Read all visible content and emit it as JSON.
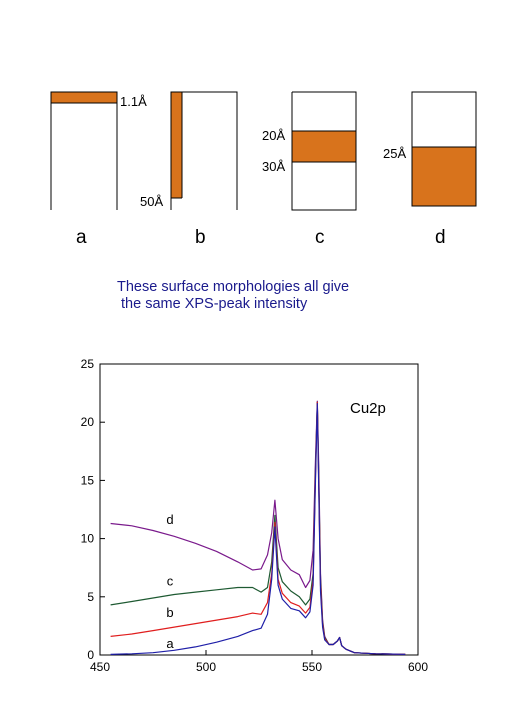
{
  "diagrams": [
    {
      "letter": "a",
      "depth_labels": [
        "1.1Å"
      ]
    },
    {
      "letter": "b",
      "depth_labels": [
        "50Å"
      ]
    },
    {
      "letter": "c",
      "depth_labels": [
        "20Å",
        "30Å"
      ]
    },
    {
      "letter": "d",
      "depth_labels": [
        "25Å"
      ]
    }
  ],
  "caption": {
    "line1": "These surface morphologies all give",
    "line2": " the same XPS-peak intensity"
  },
  "colors": {
    "layer_fill": "#d8731c",
    "caption": "#1a1a8c",
    "a": "#1f1fa8",
    "b": "#e01e1e",
    "c": "#1e5a32",
    "d": "#7a1a8c"
  },
  "chart_data": {
    "type": "line",
    "title": "Cu2p",
    "xlim": [
      450,
      600
    ],
    "ylim": [
      0,
      25
    ],
    "xticks": [
      450,
      500,
      550,
      600
    ],
    "yticks": [
      0,
      5,
      10,
      15,
      20,
      25
    ],
    "series": [
      {
        "name": "d",
        "color": "#7a1a8c",
        "label_at": [
          483,
          11.0
        ],
        "x": [
          455,
          465,
          475,
          485,
          495,
          505,
          515,
          522,
          526,
          529,
          531,
          532.5,
          534,
          536,
          540,
          544,
          547,
          549,
          550.5,
          551.5,
          552.5,
          553.2,
          554,
          555,
          556,
          558,
          560,
          562,
          563,
          564,
          566,
          570,
          580,
          594
        ],
        "y": [
          11.3,
          11.1,
          10.7,
          10.2,
          9.6,
          8.9,
          8.0,
          7.3,
          7.4,
          8.6,
          10.5,
          13.3,
          10.0,
          8.2,
          7.3,
          6.9,
          5.8,
          6.4,
          9.0,
          16.0,
          21.8,
          16.0,
          7.0,
          3.0,
          1.6,
          0.9,
          0.9,
          1.2,
          1.5,
          0.8,
          0.5,
          0.2,
          0.1,
          0.05
        ]
      },
      {
        "name": "c",
        "color": "#1e5a32",
        "label_at": [
          483,
          5.7
        ],
        "x": [
          455,
          465,
          475,
          485,
          495,
          505,
          515,
          522,
          526,
          529,
          531,
          532.5,
          534,
          536,
          540,
          544,
          547,
          549,
          550.5,
          551.5,
          552.5,
          553.2,
          554,
          555,
          556,
          558,
          560,
          562,
          563,
          564,
          566,
          570,
          580,
          594
        ],
        "y": [
          4.3,
          4.6,
          4.9,
          5.2,
          5.4,
          5.6,
          5.8,
          5.8,
          5.4,
          5.8,
          8.0,
          12.0,
          7.5,
          6.3,
          5.5,
          5.0,
          4.3,
          4.8,
          7.0,
          15.0,
          21.7,
          15.0,
          6.5,
          2.8,
          1.5,
          0.9,
          0.9,
          1.2,
          1.5,
          0.8,
          0.5,
          0.2,
          0.1,
          0.05
        ]
      },
      {
        "name": "b",
        "color": "#e01e1e",
        "label_at": [
          483,
          3.0
        ],
        "x": [
          455,
          465,
          475,
          485,
          495,
          505,
          515,
          522,
          526,
          529,
          531,
          532.5,
          534,
          536,
          540,
          544,
          547,
          549,
          550.5,
          551.5,
          552.5,
          553.2,
          554,
          555,
          556,
          558,
          560,
          562,
          563,
          564,
          566,
          570,
          580,
          594
        ],
        "y": [
          1.6,
          1.8,
          2.1,
          2.4,
          2.7,
          3.0,
          3.3,
          3.6,
          3.5,
          4.5,
          7.0,
          11.4,
          6.5,
          5.3,
          4.5,
          4.2,
          3.6,
          4.1,
          6.5,
          14.5,
          21.7,
          14.5,
          6.0,
          2.6,
          1.4,
          0.9,
          0.9,
          1.2,
          1.5,
          0.8,
          0.5,
          0.2,
          0.1,
          0.05
        ]
      },
      {
        "name": "a",
        "color": "#1f1fa8",
        "label_at": [
          483,
          0.35
        ],
        "x": [
          455,
          465,
          475,
          485,
          495,
          505,
          515,
          522,
          526,
          529,
          531,
          532.5,
          534,
          536,
          540,
          544,
          547,
          549,
          550.5,
          551.5,
          552.5,
          553.2,
          554,
          555,
          556,
          558,
          560,
          562,
          563,
          564,
          566,
          570,
          580,
          594
        ],
        "y": [
          0.05,
          0.1,
          0.2,
          0.4,
          0.7,
          1.1,
          1.6,
          2.1,
          2.3,
          3.5,
          6.5,
          11.0,
          6.0,
          4.8,
          4.0,
          3.8,
          3.2,
          3.7,
          6.0,
          14.0,
          21.6,
          14.0,
          5.5,
          2.4,
          1.3,
          0.9,
          0.9,
          1.2,
          1.5,
          0.8,
          0.5,
          0.2,
          0.1,
          0.05
        ]
      }
    ]
  }
}
